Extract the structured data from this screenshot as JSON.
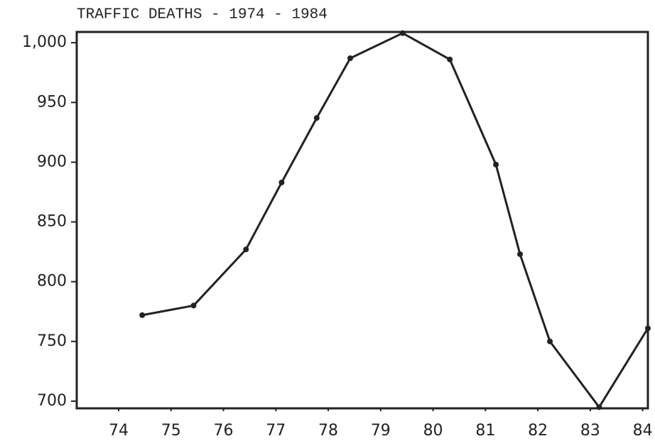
{
  "chart_data": {
    "type": "line",
    "title": "TRAFFIC DEATHS - 1974 - 1984",
    "x": [
      74.45,
      75.43,
      76.43,
      77.11,
      77.78,
      78.42,
      79.42,
      80.32,
      81.2,
      81.66,
      82.23,
      83.17,
      84.1
    ],
    "series": [
      {
        "name": "Traffic deaths",
        "color": "#222222",
        "values": [
          772,
          780,
          827,
          883,
          937,
          987,
          1008,
          986,
          898,
          823,
          750,
          695,
          761
        ]
      }
    ],
    "xlim": [
      73.2,
      84.1
    ],
    "xticks": [
      74,
      75,
      76,
      77,
      78,
      79,
      80,
      81,
      82,
      83,
      84
    ],
    "ylim": [
      694,
      1009
    ],
    "yticks": [
      700,
      750,
      800,
      850,
      900,
      950,
      {
        "value": 1000,
        "label": "1,000"
      }
    ],
    "grid": false
  }
}
